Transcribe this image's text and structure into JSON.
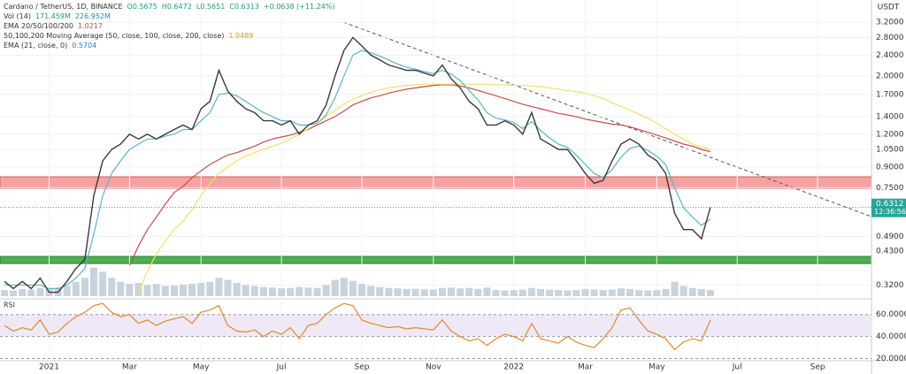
{
  "chart_data": {
    "type": "line",
    "header_lines": {
      "title": "Cardano / TetherUS, 1D, BINANCE",
      "ohlc": [
        "O0.5675",
        "H0.6472",
        "L0.5651",
        "C0.6313",
        "+0.0638 (+11.24%)"
      ],
      "volume": [
        "Vol (14)",
        "171.459M",
        "226.952M"
      ],
      "ema": [
        "EMA 20/50/100/200",
        "1.0217"
      ],
      "ma": [
        "50,100,200 Moving Average (50, close, 100, close, 200, close)",
        "1.0489"
      ],
      "ema21": [
        "EMA (21, close, 0)",
        "0.5704"
      ]
    },
    "currency": "USDT",
    "categories": [
      null,
      null,
      null,
      null,
      null,
      "2021",
      null,
      null,
      null,
      null,
      null,
      null,
      null,
      null,
      "Mar",
      null,
      null,
      null,
      null,
      null,
      null,
      null,
      "May",
      null,
      null,
      null,
      null,
      null,
      null,
      null,
      null,
      "Jul",
      null,
      null,
      null,
      null,
      null,
      null,
      null,
      null,
      "Sep",
      null,
      null,
      null,
      null,
      null,
      null,
      null,
      "Nov",
      null,
      null,
      null,
      null,
      null,
      null,
      null,
      null,
      "2022",
      null,
      null,
      null,
      null,
      null,
      null,
      null,
      "Mar",
      null,
      null,
      null,
      null,
      null,
      null,
      null,
      "May",
      null,
      null,
      null,
      null,
      null,
      null,
      null,
      null,
      "Jul",
      null,
      null,
      null,
      null,
      null,
      null,
      null,
      null,
      "Sep",
      null,
      null,
      null,
      null,
      null
    ],
    "log_scale": true,
    "ylim": [
      0.29,
      3.6
    ],
    "yticks": [
      {
        "value": 3.2,
        "label": "3.2000"
      },
      {
        "value": 2.8,
        "label": "2.8000"
      },
      {
        "value": 2.4,
        "label": "2.4000"
      },
      {
        "value": 2.0,
        "label": "2.0000"
      },
      {
        "value": 1.7,
        "label": "1.7000"
      },
      {
        "value": 1.4,
        "label": "1.4000"
      },
      {
        "value": 1.2,
        "label": "1.2000"
      },
      {
        "value": 1.05,
        "label": "1.0500"
      },
      {
        "value": 0.9,
        "label": "0.9000"
      },
      {
        "value": 0.75,
        "label": "0.7500"
      },
      {
        "value": 0.49,
        "label": "0.4900"
      },
      {
        "value": 0.43,
        "label": "0.4300"
      },
      {
        "value": 0.32,
        "label": "0.3200"
      }
    ],
    "series": [
      {
        "color": "#3a3a3a",
        "values": [
          0.33,
          0.31,
          0.33,
          0.31,
          0.34,
          0.3,
          0.3,
          0.33,
          0.37,
          0.4,
          0.7,
          0.95,
          1.05,
          1.1,
          1.2,
          1.15,
          1.2,
          1.15,
          1.2,
          1.25,
          1.3,
          1.25,
          1.5,
          1.6,
          2.1,
          1.75,
          1.6,
          1.5,
          1.45,
          1.35,
          1.35,
          1.3,
          1.35,
          1.2,
          1.3,
          1.35,
          1.55,
          2.0,
          2.5,
          2.8,
          2.6,
          2.4,
          2.3,
          2.2,
          2.15,
          2.1,
          2.1,
          2.05,
          2.0,
          2.2,
          1.95,
          1.8,
          1.6,
          1.5,
          1.3,
          1.3,
          1.35,
          1.3,
          1.2,
          1.45,
          1.15,
          1.1,
          1.05,
          1.05,
          0.95,
          0.85,
          0.78,
          0.8,
          0.95,
          1.1,
          1.15,
          1.1,
          1.0,
          0.95,
          0.85,
          0.6,
          0.52,
          0.52,
          0.48,
          0.6312,
          null,
          null,
          null,
          null,
          null,
          null,
          null,
          null,
          null,
          null,
          null,
          null,
          null,
          null,
          null,
          null,
          null
        ]
      },
      {
        "color": "#5ab4c8",
        "values": [
          0.32,
          0.32,
          0.32,
          0.32,
          0.32,
          0.31,
          0.31,
          0.32,
          0.34,
          0.37,
          0.5,
          0.7,
          0.85,
          0.95,
          1.05,
          1.1,
          1.15,
          1.15,
          1.18,
          1.2,
          1.25,
          1.25,
          1.35,
          1.45,
          1.7,
          1.72,
          1.68,
          1.6,
          1.52,
          1.45,
          1.4,
          1.35,
          1.35,
          1.3,
          1.3,
          1.32,
          1.42,
          1.65,
          2.0,
          2.4,
          2.5,
          2.45,
          2.38,
          2.3,
          2.22,
          2.16,
          2.12,
          2.08,
          2.04,
          2.1,
          2.03,
          1.92,
          1.76,
          1.62,
          1.45,
          1.38,
          1.36,
          1.33,
          1.26,
          1.34,
          1.24,
          1.16,
          1.1,
          1.07,
          1.0,
          0.92,
          0.85,
          0.82,
          0.88,
          0.98,
          1.06,
          1.08,
          1.04,
          0.99,
          0.92,
          0.75,
          0.63,
          0.58,
          0.54,
          0.57,
          null,
          null,
          null,
          null,
          null,
          null,
          null,
          null,
          null,
          null,
          null,
          null,
          null,
          null,
          null,
          null,
          null
        ]
      },
      {
        "color": "#f3e06a",
        "values": [
          null,
          null,
          null,
          null,
          null,
          null,
          null,
          null,
          null,
          null,
          null,
          null,
          null,
          null,
          null,
          0.3,
          0.36,
          0.42,
          0.47,
          0.52,
          0.56,
          0.62,
          0.7,
          0.78,
          0.85,
          0.9,
          0.95,
          0.99,
          1.02,
          1.05,
          1.08,
          1.11,
          1.15,
          1.2,
          1.26,
          1.32,
          1.4,
          1.48,
          1.56,
          1.63,
          1.68,
          1.73,
          1.77,
          1.8,
          1.82,
          1.84,
          1.85,
          1.86,
          1.86,
          1.86,
          1.86,
          1.86,
          1.86,
          1.86,
          1.86,
          1.85,
          1.85,
          1.84,
          1.84,
          1.83,
          1.82,
          1.8,
          1.78,
          1.76,
          1.74,
          1.72,
          1.68,
          1.64,
          1.58,
          1.53,
          1.48,
          1.43,
          1.38,
          1.32,
          1.26,
          1.2,
          1.15,
          1.1,
          1.07,
          1.05,
          null,
          null,
          null,
          null,
          null,
          null,
          null,
          null,
          null,
          null,
          null,
          null,
          null,
          null,
          null,
          null,
          null
        ]
      },
      {
        "color": "#c0504d",
        "values": [
          null,
          null,
          null,
          null,
          null,
          null,
          null,
          null,
          null,
          null,
          null,
          null,
          null,
          null,
          0.38,
          0.45,
          0.52,
          0.58,
          0.65,
          0.72,
          0.76,
          0.82,
          0.87,
          0.92,
          0.96,
          1.0,
          1.02,
          1.05,
          1.08,
          1.12,
          1.15,
          1.17,
          1.19,
          1.22,
          1.25,
          1.3,
          1.35,
          1.4,
          1.47,
          1.55,
          1.6,
          1.65,
          1.68,
          1.72,
          1.75,
          1.78,
          1.8,
          1.82,
          1.84,
          1.85,
          1.85,
          1.83,
          1.8,
          1.76,
          1.72,
          1.68,
          1.64,
          1.6,
          1.56,
          1.53,
          1.5,
          1.47,
          1.44,
          1.42,
          1.4,
          1.37,
          1.35,
          1.33,
          1.31,
          1.3,
          1.28,
          1.25,
          1.22,
          1.19,
          1.16,
          1.13,
          1.1,
          1.08,
          1.05,
          1.03,
          null,
          null,
          null,
          null,
          null,
          null,
          null,
          null,
          null,
          null,
          null,
          null,
          null,
          null,
          null,
          null,
          null
        ]
      }
    ],
    "last_price": {
      "value": 0.6312,
      "label": "0.6312",
      "time": "12:36:56"
    },
    "volume": {
      "color": "#c9d3dc",
      "vlim": [
        0,
        1600
      ],
      "values": [
        300,
        280,
        350,
        320,
        400,
        360,
        420,
        500,
        700,
        900,
        1400,
        1200,
        900,
        700,
        600,
        650,
        550,
        600,
        500,
        520,
        560,
        600,
        650,
        700,
        900,
        800,
        650,
        550,
        500,
        450,
        420,
        380,
        400,
        450,
        420,
        400,
        550,
        800,
        900,
        750,
        600,
        500,
        450,
        400,
        380,
        350,
        360,
        340,
        330,
        400,
        420,
        380,
        400,
        350,
        420,
        300,
        280,
        300,
        320,
        400,
        350,
        320,
        300,
        280,
        300,
        350,
        330,
        300,
        320,
        380,
        350,
        300,
        280,
        300,
        350,
        700,
        500,
        400,
        350,
        300,
        null,
        null,
        null,
        null,
        null,
        null,
        null,
        null,
        null,
        null,
        null,
        null,
        null,
        null,
        null,
        null,
        null
      ]
    },
    "rsi": {
      "label": "RSI",
      "color": "#e08a2c",
      "ylim": [
        18,
        71
      ],
      "yticks": [
        {
          "value": 60,
          "label": "60.0000"
        },
        {
          "value": 40,
          "label": "40.0000"
        },
        {
          "value": 20,
          "label": "20.0000"
        }
      ],
      "values": [
        50,
        45,
        48,
        46,
        55,
        42,
        44,
        52,
        58,
        62,
        68,
        70,
        62,
        58,
        60,
        52,
        55,
        50,
        54,
        56,
        58,
        52,
        62,
        64,
        68,
        50,
        45,
        44,
        46,
        40,
        45,
        42,
        48,
        38,
        50,
        52,
        60,
        66,
        70,
        68,
        55,
        52,
        50,
        48,
        49,
        47,
        48,
        47,
        46,
        55,
        45,
        40,
        36,
        38,
        32,
        38,
        42,
        40,
        36,
        52,
        38,
        36,
        34,
        40,
        35,
        32,
        30,
        38,
        48,
        64,
        66,
        55,
        45,
        42,
        38,
        28,
        35,
        38,
        36,
        55,
        null,
        null,
        null,
        null,
        null,
        null,
        null,
        null,
        null,
        null,
        null,
        null,
        null,
        null,
        null,
        null,
        null
      ]
    }
  }
}
